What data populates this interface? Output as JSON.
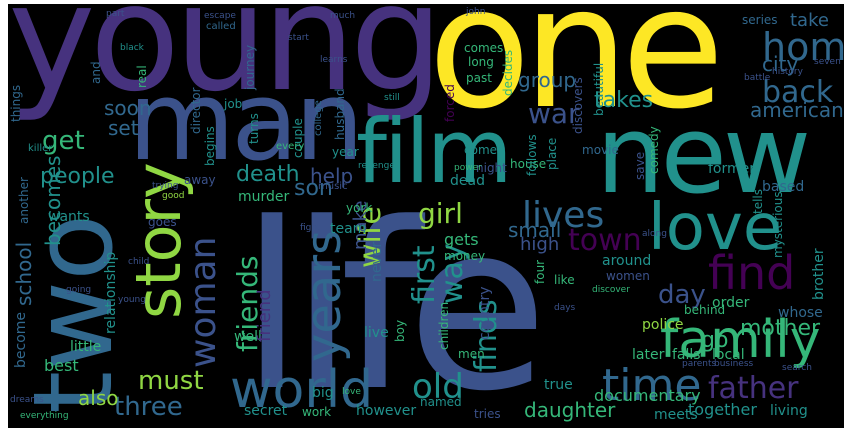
{
  "palette": {
    "purple_dark": "#46327e",
    "indigo": "#3b528b",
    "steel_blue": "#31688e",
    "teal": "#21918c",
    "green": "#35b779",
    "lime": "#90d743",
    "yellow": "#fde725",
    "deep_purple": "#440154"
  },
  "words": {
    "young": "young",
    "one": "one",
    "man": "man",
    "new": "new",
    "film": "film",
    "life": "life",
    "two": "two",
    "story": "story",
    "love": "love",
    "family": "family",
    "find": "find",
    "world": "world",
    "years": "years",
    "woman": "woman",
    "time": "time",
    "friends": "friends",
    "wife": "wife",
    "lives": "lives",
    "home": "home",
    "back": "back",
    "city": "city",
    "war": "war",
    "girl": "girl",
    "town": "town",
    "first": "first",
    "way": "way",
    "finds": "finds",
    "day": "day",
    "father": "father",
    "old": "old",
    "must": "must",
    "three": "three",
    "mother": "mother",
    "go": "go",
    "get": "get",
    "people": "people",
    "school": "school",
    "becomes": "becomes",
    "death": "death",
    "son": "son",
    "help": "help",
    "take": "take",
    "takes": "takes",
    "group": "group",
    "american": "american",
    "soon": "soon",
    "set": "set",
    "make": "make",
    "small": "small",
    "gets": "gets",
    "high": "high",
    "also": "also",
    "daughter": "daughter",
    "together": "together",
    "living": "living",
    "documentary": "documentary",
    "however": "however",
    "meets": "meets",
    "secret": "secret",
    "work": "work",
    "true": "true",
    "police": "police",
    "local": "local",
    "falls": "falls",
    "later": "later",
    "former": "former",
    "based": "based",
    "brother": "brother",
    "whose": "whose",
    "women": "women",
    "order": "order",
    "behind": "behind",
    "around": "around",
    "like": "like",
    "four": "four",
    "country": "country",
    "children": "children",
    "boy": "boy",
    "live": "live",
    "best": "best",
    "little": "little",
    "become": "become",
    "well": "well",
    "friend": "friend",
    "relationship": "relationship",
    "murder": "murder",
    "goes": "goes",
    "wants": "wants",
    "team": "team",
    "york": "york",
    "never": "never",
    "money": "money",
    "dead": "dead",
    "night": "night",
    "come": "come",
    "begins": "begins",
    "turns": "turns",
    "couple": "couple",
    "husband": "husband",
    "director": "director",
    "journey": "journey",
    "job": "job",
    "real": "real",
    "and": "and",
    "things": "things",
    "comes": "comes",
    "long": "long",
    "past": "past",
    "decides": "decides",
    "discovers": "discovers",
    "beautiful": "beautiful",
    "movie": "movie",
    "house": "house",
    "place": "place",
    "follows": "follows",
    "save": "save",
    "comedy": "comedy",
    "tells": "tells",
    "mysterious": "mysterious",
    "series": "series",
    "year": "year",
    "another": "another",
    "away": "away",
    "big": "big",
    "named": "named",
    "men": "men",
    "tries": "tries",
    "forced": "forced",
    "killer": "killer",
    "college": "college",
    "music": "music",
    "every": "every",
    "called": "called",
    "escape": "escape",
    "much": "much",
    "part": "part",
    "john": "john",
    "black": "black",
    "power": "power",
    "trying": "trying",
    "revenge": "revenge",
    "along": "along",
    "parents": "parents",
    "dreams": "dreams",
    "everything": "everything",
    "going": "going",
    "still": "still",
    "history": "history",
    "fight": "fight",
    "search": "search",
    "young_small": "young",
    "discover": "discover",
    "start": "start",
    "battle": "battle",
    "child": "child",
    "good": "good",
    "seven": "seven",
    "learns": "learns",
    "business": "business",
    "days": "days",
    "love_small": "love"
  }
}
